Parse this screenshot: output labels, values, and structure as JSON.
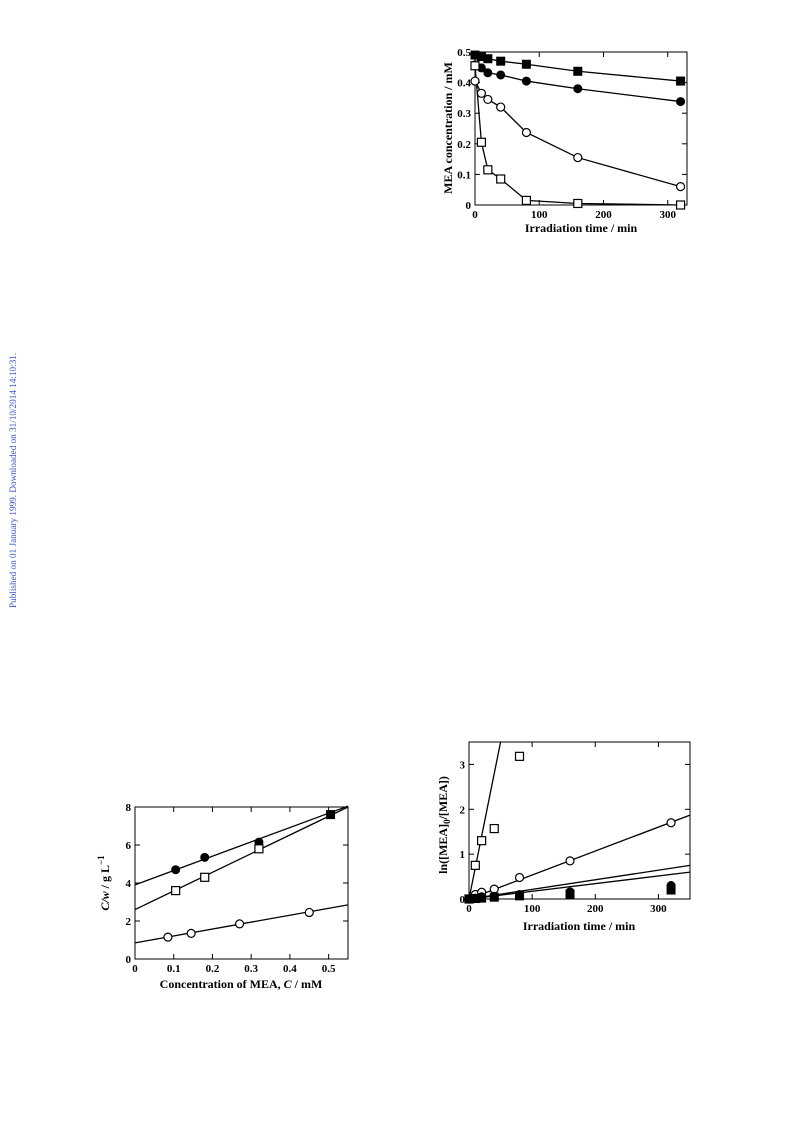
{
  "watermark": "Published on 01 January 1999. Downloaded on 31/10/2014 14:10:31.",
  "colors": {
    "watermark": "#3b53c4",
    "ink": "#000000"
  },
  "chart_data": [
    {
      "type": "scatter",
      "xlabel": "Irradiation time  / min",
      "ylabel": "MEA concentration  / mM",
      "xlim": [
        0,
        330
      ],
      "ylim": [
        0,
        0.5
      ],
      "xticks": [
        "0",
        "100",
        "200",
        "300"
      ],
      "yticks": [
        "0",
        "0.1",
        "0.2",
        "0.3",
        "0.4",
        "0.5"
      ],
      "series": [
        {
          "marker": "filled-square",
          "x": [
            0,
            10,
            20,
            40,
            80,
            160,
            320
          ],
          "y": [
            0.49,
            0.485,
            0.478,
            0.47,
            0.46,
            0.437,
            0.405
          ]
        },
        {
          "marker": "filled-circle",
          "x": [
            0,
            10,
            20,
            40,
            80,
            160,
            320
          ],
          "y": [
            0.458,
            0.448,
            0.432,
            0.425,
            0.405,
            0.38,
            0.338
          ]
        },
        {
          "marker": "open-circle",
          "x": [
            0,
            10,
            20,
            40,
            80,
            160,
            320
          ],
          "y": [
            0.405,
            0.365,
            0.345,
            0.32,
            0.237,
            0.155,
            0.06
          ]
        },
        {
          "marker": "open-square",
          "x": [
            0,
            10,
            20,
            40,
            80,
            160,
            320
          ],
          "y": [
            0.455,
            0.205,
            0.115,
            0.085,
            0.015,
            0.005,
            0.0
          ]
        }
      ]
    },
    {
      "type": "scatter",
      "xlabel": "Concentration of MEA,",
      "xlabel_var": "C",
      "xlabel_unit": "/ mM",
      "ylabel_var": "C/w",
      "ylabel_unit": "/ g L",
      "ylabel_exp": "−1",
      "xlim": [
        0,
        0.55
      ],
      "ylim": [
        0,
        8
      ],
      "xticks": [
        "0",
        "0.1",
        "0.2",
        "0.3",
        "0.4",
        "0.5"
      ],
      "yticks": [
        "0",
        "2",
        "4",
        "6",
        "8"
      ],
      "series": [
        {
          "marker": "filled-circle",
          "x": [
            0.105,
            0.18,
            0.32
          ],
          "y": [
            4.7,
            5.35,
            6.15
          ],
          "fit": [
            0,
            3.9,
            0.55,
            8.05
          ]
        },
        {
          "marker": "open-square",
          "x": [
            0.105,
            0.18,
            0.32
          ],
          "y": [
            3.6,
            4.3,
            5.8
          ],
          "fit": [
            0,
            2.6,
            0.55,
            8.0
          ]
        },
        {
          "marker": "open-circle",
          "x": [
            0.085,
            0.145,
            0.27,
            0.45
          ],
          "y": [
            1.15,
            1.35,
            1.85,
            2.45
          ],
          "fit": [
            0,
            0.85,
            0.55,
            2.85
          ]
        },
        {
          "marker": "filled-square",
          "x": [
            0.505
          ],
          "y": [
            7.6
          ]
        }
      ]
    },
    {
      "type": "scatter",
      "xlabel": "Irradiation time  / min",
      "ylabel": "ln([MEA]",
      "ylabel_sub": "0",
      "ylabel_rest": "/[MEA])",
      "xlim": [
        0,
        350
      ],
      "ylim": [
        0,
        3.5
      ],
      "xticks": [
        "0",
        "100",
        "200",
        "300"
      ],
      "yticks": [
        "0",
        "1",
        "2",
        "3"
      ],
      "series": [
        {
          "marker": "open-square",
          "x": [
            0,
            10,
            20,
            40,
            80
          ],
          "y": [
            0,
            0.75,
            1.3,
            1.57,
            3.18
          ],
          "fit": [
            0,
            0,
            50,
            3.5
          ]
        },
        {
          "marker": "open-circle",
          "x": [
            0,
            10,
            20,
            40,
            80,
            160,
            320
          ],
          "y": [
            0,
            0.1,
            0.15,
            0.22,
            0.48,
            0.85,
            1.7
          ],
          "fit": [
            0,
            0,
            350,
            1.87
          ]
        },
        {
          "marker": "filled-circle",
          "x": [
            0,
            10,
            20,
            40,
            80,
            160,
            320
          ],
          "y": [
            0,
            0.02,
            0.05,
            0.06,
            0.1,
            0.16,
            0.3
          ],
          "fit": [
            0,
            0,
            350,
            0.75
          ]
        },
        {
          "marker": "filled-square",
          "x": [
            0,
            10,
            20,
            40,
            80,
            160,
            320
          ],
          "y": [
            0,
            0.01,
            0.02,
            0.04,
            0.07,
            0.11,
            0.2
          ],
          "fit": [
            0,
            0,
            350,
            0.6
          ]
        }
      ]
    }
  ]
}
